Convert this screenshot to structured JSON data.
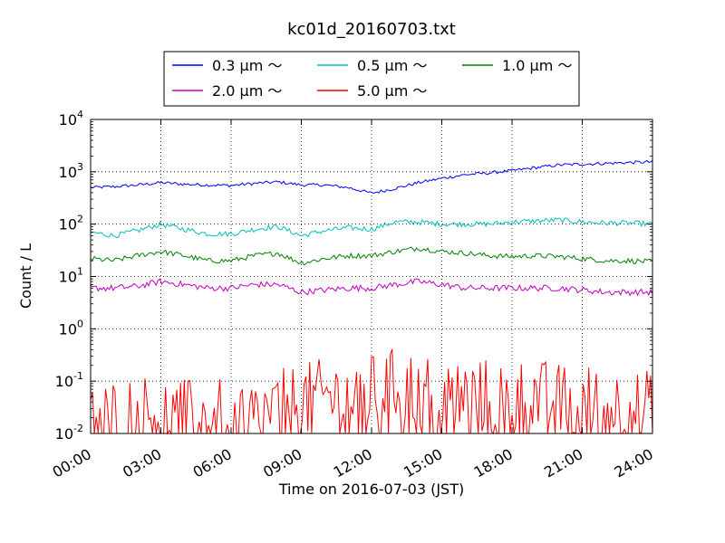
{
  "chart_data": {
    "type": "line",
    "title": "kc01d_20160703.txt",
    "xlabel": "Time on 2016-07-03 (JST)",
    "ylabel": "Count / L",
    "yscale": "log",
    "ylim": [
      0.01,
      10000
    ],
    "xlim": [
      "00:00",
      "24:00"
    ],
    "grid": true,
    "legend_position": "top-center",
    "x_ticks": [
      "00:00",
      "03:00",
      "06:00",
      "09:00",
      "12:00",
      "15:00",
      "18:00",
      "21:00",
      "24:00"
    ],
    "y_ticks": [
      {
        "base": "10",
        "exp": "-2",
        "value": 0.01
      },
      {
        "base": "10",
        "exp": "-1",
        "value": 0.1
      },
      {
        "base": "10",
        "exp": "0",
        "value": 1
      },
      {
        "base": "10",
        "exp": "1",
        "value": 10
      },
      {
        "base": "10",
        "exp": "2",
        "value": 100
      },
      {
        "base": "10",
        "exp": "3",
        "value": 1000
      },
      {
        "base": "10",
        "exp": "4",
        "value": 10000
      }
    ],
    "x": [
      "00:00",
      "01:00",
      "02:00",
      "03:00",
      "04:00",
      "05:00",
      "06:00",
      "07:00",
      "08:00",
      "09:00",
      "10:00",
      "11:00",
      "12:00",
      "13:00",
      "14:00",
      "15:00",
      "16:00",
      "17:00",
      "18:00",
      "19:00",
      "20:00",
      "21:00",
      "22:00",
      "23:00",
      "24:00"
    ],
    "series": [
      {
        "name": "0.3 μm ～",
        "color": "#0000ff",
        "noise": 0.03,
        "values": [
          500,
          520,
          560,
          620,
          580,
          560,
          550,
          600,
          640,
          560,
          560,
          500,
          390,
          480,
          620,
          750,
          880,
          950,
          1050,
          1200,
          1350,
          1400,
          1450,
          1500,
          1550
        ]
      },
      {
        "name": "0.5 μm ～",
        "color": "#00bfbf",
        "noise": 0.05,
        "values": [
          70,
          60,
          75,
          100,
          80,
          65,
          65,
          80,
          90,
          60,
          75,
          85,
          80,
          110,
          110,
          100,
          100,
          100,
          110,
          115,
          120,
          110,
          105,
          105,
          100
        ]
      },
      {
        "name": "1.0 μm ～",
        "color": "#008000",
        "noise": 0.05,
        "values": [
          22,
          20,
          25,
          30,
          25,
          20,
          20,
          25,
          28,
          18,
          22,
          25,
          25,
          30,
          35,
          30,
          28,
          25,
          24,
          25,
          24,
          22,
          20,
          20,
          19
        ]
      },
      {
        "name": "2.0 μm ～",
        "color": "#bf00bf",
        "noise": 0.06,
        "values": [
          6,
          6,
          6.5,
          8,
          7,
          6,
          6,
          7,
          7,
          5,
          5.5,
          6,
          6,
          7,
          8,
          7,
          6,
          6,
          6,
          6,
          6,
          5.5,
          5,
          5,
          5
        ]
      },
      {
        "name": "5.0 μm ～",
        "color": "#ff0000",
        "noise": 0.3,
        "floor": 0.01,
        "values": [
          0.02,
          0.02,
          0.025,
          0.025,
          0.02,
          0.02,
          0.02,
          0.02,
          0.03,
          0.04,
          0.05,
          0.05,
          0.06,
          0.08,
          0.07,
          0.06,
          0.05,
          0.05,
          0.05,
          0.05,
          0.04,
          0.04,
          0.035,
          0.03,
          0.03
        ]
      }
    ]
  }
}
